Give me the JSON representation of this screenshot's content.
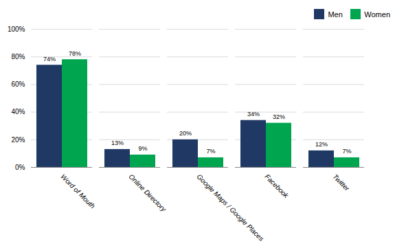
{
  "chart_data": {
    "type": "bar",
    "categories": [
      "Word of Mouth",
      "Online Directory",
      "Google Maps / Google Places",
      "Facebook",
      "Twitter"
    ],
    "series": [
      {
        "name": "Men",
        "color": "#1F3864",
        "values": [
          74,
          13,
          20,
          34,
          12
        ],
        "value_labels": [
          "74%",
          "13%",
          "20%",
          "34%",
          "12%"
        ]
      },
      {
        "name": "Women",
        "color": "#00A550",
        "values": [
          78,
          9,
          7,
          32,
          7
        ],
        "value_labels": [
          "78%",
          "9%",
          "7%",
          "32%",
          "7%"
        ]
      }
    ],
    "ylim": [
      0,
      100
    ],
    "yticks": [
      {
        "value": 0,
        "label": "0%"
      },
      {
        "value": 20,
        "label": "20%"
      },
      {
        "value": 40,
        "label": "40%"
      },
      {
        "value": 60,
        "label": "60%"
      },
      {
        "value": 80,
        "label": "80%"
      },
      {
        "value": 100,
        "label": "100%"
      }
    ],
    "grid": true,
    "legend": "upper right",
    "data_labels": true
  }
}
